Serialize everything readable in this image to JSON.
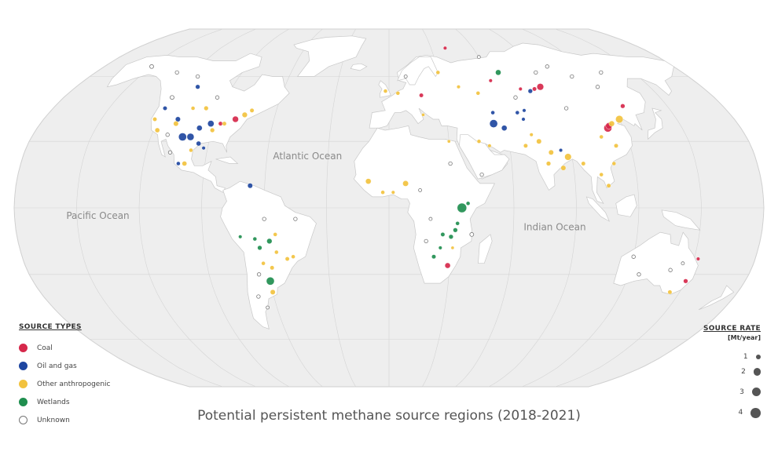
{
  "title": "Potential persistent methane source regions (2018-2021)",
  "oceans": [
    {
      "name": "Atlantic Ocean",
      "lon": -40,
      "lat": 22
    },
    {
      "name": "Pacific Ocean",
      "lon": -140,
      "lat": -5
    },
    {
      "name": "Indian Ocean",
      "lon": 80,
      "lat": -10
    }
  ],
  "legend": {
    "title": "SOURCE TYPES",
    "items": [
      {
        "key": "coal",
        "label": "Coal",
        "color": "#d6284b"
      },
      {
        "key": "oil_gas",
        "label": "Oil and gas",
        "color": "#1e46a0"
      },
      {
        "key": "other",
        "label": "Other anthropogenic",
        "color": "#f2c23e"
      },
      {
        "key": "wetlands",
        "label": "Wetlands",
        "color": "#1f8e4f"
      },
      {
        "key": "unknown",
        "label": "Unknown",
        "color": "#ffffff"
      }
    ]
  },
  "source_rate": {
    "title": "SOURCE RATE",
    "unit": "[Mt/year]",
    "values": [
      1,
      2,
      3,
      4
    ]
  },
  "sources": [
    {
      "lon": -100,
      "lat": 32,
      "type": "oil_gas",
      "rate": 2.0
    },
    {
      "lon": -104,
      "lat": 32,
      "type": "oil_gas",
      "rate": 2.5
    },
    {
      "lon": -97,
      "lat": 36,
      "type": "oil_gas",
      "rate": 1.2
    },
    {
      "lon": -92,
      "lat": 38,
      "type": "oil_gas",
      "rate": 1.6
    },
    {
      "lon": -110,
      "lat": 40,
      "type": "oil_gas",
      "rate": 1.0
    },
    {
      "lon": -110,
      "lat": 55,
      "type": "oil_gas",
      "rate": 0.8
    },
    {
      "lon": -120,
      "lat": 45,
      "type": "oil_gas",
      "rate": 0.7
    },
    {
      "lon": -95,
      "lat": 29,
      "type": "oil_gas",
      "rate": 0.9
    },
    {
      "lon": -103,
      "lat": 20,
      "type": "oil_gas",
      "rate": 0.6
    },
    {
      "lon": -92,
      "lat": 27,
      "type": "oil_gas",
      "rate": 0.5
    },
    {
      "lon": -67,
      "lat": 10,
      "type": "oil_gas",
      "rate": 1.0
    },
    {
      "lon": 54,
      "lat": 38,
      "type": "oil_gas",
      "rate": 2.5
    },
    {
      "lon": 59,
      "lat": 36,
      "type": "oil_gas",
      "rate": 1.2
    },
    {
      "lon": 68,
      "lat": 43,
      "type": "oil_gas",
      "rate": 0.6
    },
    {
      "lon": 72,
      "lat": 44,
      "type": "oil_gas",
      "rate": 0.5
    },
    {
      "lon": 55,
      "lat": 43,
      "type": "oil_gas",
      "rate": 0.6
    },
    {
      "lon": 80,
      "lat": 53,
      "type": "oil_gas",
      "rate": 0.8
    },
    {
      "lon": 85,
      "lat": 26,
      "type": "oil_gas",
      "rate": 0.5
    },
    {
      "lon": 70,
      "lat": 40,
      "type": "oil_gas",
      "rate": 0.5
    },
    {
      "lon": -80,
      "lat": 40,
      "type": "coal",
      "rate": 1.5
    },
    {
      "lon": -87,
      "lat": 38,
      "type": "coal",
      "rate": 0.7
    },
    {
      "lon": 87,
      "lat": 55,
      "type": "coal",
      "rate": 1.8
    },
    {
      "lon": 83,
      "lat": 54,
      "type": "coal",
      "rate": 0.7
    },
    {
      "lon": 112,
      "lat": 36,
      "type": "coal",
      "rate": 2.5
    },
    {
      "lon": 113,
      "lat": 37,
      "type": "coal",
      "rate": 1.6
    },
    {
      "lon": 126,
      "lat": 46,
      "type": "coal",
      "rate": 0.8
    },
    {
      "lon": 18,
      "lat": 51,
      "type": "coal",
      "rate": 0.7
    },
    {
      "lon": 29,
      "lat": -26,
      "type": "coal",
      "rate": 1.2
    },
    {
      "lon": 152,
      "lat": -23,
      "type": "coal",
      "rate": 0.5
    },
    {
      "lon": 150,
      "lat": -33,
      "type": "coal",
      "rate": 0.8
    },
    {
      "lon": 60,
      "lat": 58,
      "type": "coal",
      "rate": 0.5
    },
    {
      "lon": 75,
      "lat": 54,
      "type": "coal",
      "rate": 0.5
    },
    {
      "lon": 40,
      "lat": 75,
      "type": "coal",
      "rate": 0.5
    },
    {
      "lon": 120,
      "lat": 40,
      "type": "other",
      "rate": 2.2
    },
    {
      "lon": 115,
      "lat": 38,
      "type": "other",
      "rate": 1.2
    },
    {
      "lon": 88,
      "lat": 23,
      "type": "other",
      "rate": 1.8
    },
    {
      "lon": 80,
      "lat": 25,
      "type": "other",
      "rate": 1.0
    },
    {
      "lon": 75,
      "lat": 30,
      "type": "other",
      "rate": 1.0
    },
    {
      "lon": 85,
      "lat": 18,
      "type": "other",
      "rate": 1.0
    },
    {
      "lon": 78,
      "lat": 20,
      "type": "other",
      "rate": 0.8
    },
    {
      "lon": 95,
      "lat": 20,
      "type": "other",
      "rate": 0.7
    },
    {
      "lon": 103,
      "lat": 15,
      "type": "other",
      "rate": 0.6
    },
    {
      "lon": 106,
      "lat": 10,
      "type": "other",
      "rate": 0.7
    },
    {
      "lon": 113,
      "lat": 28,
      "type": "other",
      "rate": 0.7
    },
    {
      "lon": 110,
      "lat": 20,
      "type": "other",
      "rate": 0.6
    },
    {
      "lon": 107,
      "lat": 32,
      "type": "other",
      "rate": 0.6
    },
    {
      "lon": 8,
      "lat": 11,
      "type": "other",
      "rate": 1.3
    },
    {
      "lon": -10,
      "lat": 12,
      "type": "other",
      "rate": 1.2
    },
    {
      "lon": -3,
      "lat": 7,
      "type": "other",
      "rate": 0.6
    },
    {
      "lon": 2,
      "lat": 7,
      "type": "other",
      "rate": 0.5
    },
    {
      "lon": -110,
      "lat": 38,
      "type": "other",
      "rate": 1.0
    },
    {
      "lon": -118,
      "lat": 35,
      "type": "other",
      "rate": 0.9
    },
    {
      "lon": -90,
      "lat": 35,
      "type": "other",
      "rate": 0.8
    },
    {
      "lon": -85,
      "lat": 38,
      "type": "other",
      "rate": 0.7
    },
    {
      "lon": -98,
      "lat": 45,
      "type": "other",
      "rate": 0.8
    },
    {
      "lon": -105,
      "lat": 45,
      "type": "other",
      "rate": 0.6
    },
    {
      "lon": -122,
      "lat": 40,
      "type": "other",
      "rate": 0.7
    },
    {
      "lon": -100,
      "lat": 20,
      "type": "other",
      "rate": 0.9
    },
    {
      "lon": -76,
      "lat": 42,
      "type": "other",
      "rate": 1.1
    },
    {
      "lon": -73,
      "lat": 44,
      "type": "other",
      "rate": 0.7
    },
    {
      "lon": -98,
      "lat": 26,
      "type": "other",
      "rate": 0.6
    },
    {
      "lon": 5,
      "lat": 52,
      "type": "other",
      "rate": 0.6
    },
    {
      "lon": -2,
      "lat": 53,
      "type": "other",
      "rate": 0.6
    },
    {
      "lon": 30,
      "lat": 62,
      "type": "other",
      "rate": 0.6
    },
    {
      "lon": 50,
      "lat": 52,
      "type": "other",
      "rate": 0.6
    },
    {
      "lon": 40,
      "lat": 55,
      "type": "other",
      "rate": 0.5
    },
    {
      "lon": 45,
      "lat": 30,
      "type": "other",
      "rate": 0.6
    },
    {
      "lon": 50,
      "lat": 28,
      "type": "other",
      "rate": 0.5
    },
    {
      "lon": 68,
      "lat": 28,
      "type": "other",
      "rate": 0.7
    },
    {
      "lon": 72,
      "lat": 33,
      "type": "other",
      "rate": 0.5
    },
    {
      "lon": -55,
      "lat": -12,
      "type": "other",
      "rate": 0.6
    },
    {
      "lon": -55,
      "lat": -20,
      "type": "other",
      "rate": 0.6
    },
    {
      "lon": -50,
      "lat": -23,
      "type": "other",
      "rate": 0.7
    },
    {
      "lon": -58,
      "lat": -27,
      "type": "other",
      "rate": 0.7
    },
    {
      "lon": -62,
      "lat": -25,
      "type": "other",
      "rate": 0.6
    },
    {
      "lon": -60,
      "lat": -38,
      "type": "other",
      "rate": 1.0
    },
    {
      "lon": -47,
      "lat": -22,
      "type": "other",
      "rate": 0.6
    },
    {
      "lon": 31,
      "lat": -18,
      "type": "other",
      "rate": 0.4
    },
    {
      "lon": 145,
      "lat": -38,
      "type": "other",
      "rate": 0.7
    },
    {
      "lon": 18,
      "lat": 42,
      "type": "other",
      "rate": 0.4
    },
    {
      "lon": 30,
      "lat": 30,
      "type": "other",
      "rate": 0.4
    },
    {
      "lon": 35,
      "lat": 0,
      "type": "wetlands",
      "rate": 3.5
    },
    {
      "lon": 38,
      "lat": 2,
      "type": "wetlands",
      "rate": 0.6
    },
    {
      "lon": -60,
      "lat": -33,
      "type": "wetlands",
      "rate": 2.5
    },
    {
      "lon": -58,
      "lat": -15,
      "type": "wetlands",
      "rate": 1.1
    },
    {
      "lon": -63,
      "lat": -18,
      "type": "wetlands",
      "rate": 0.8
    },
    {
      "lon": -65,
      "lat": -14,
      "type": "wetlands",
      "rate": 0.6
    },
    {
      "lon": -72,
      "lat": -13,
      "type": "wetlands",
      "rate": 0.5
    },
    {
      "lon": 67,
      "lat": 62,
      "type": "wetlands",
      "rate": 1.2
    },
    {
      "lon": 32,
      "lat": -10,
      "type": "wetlands",
      "rate": 0.8
    },
    {
      "lon": 30,
      "lat": -13,
      "type": "wetlands",
      "rate": 0.8
    },
    {
      "lon": 26,
      "lat": -12,
      "type": "wetlands",
      "rate": 0.7
    },
    {
      "lon": 33,
      "lat": -7,
      "type": "wetlands",
      "rate": 0.6
    },
    {
      "lon": 22,
      "lat": -22,
      "type": "wetlands",
      "rate": 0.7
    },
    {
      "lon": 25,
      "lat": -18,
      "type": "wetlands",
      "rate": 0.5
    },
    {
      "lon": -150,
      "lat": 65,
      "type": "unknown",
      "rate": 0.6
    },
    {
      "lon": -130,
      "lat": 62,
      "type": "unknown",
      "rate": 0.5
    },
    {
      "lon": -115,
      "lat": 60,
      "type": "unknown",
      "rate": 0.5
    },
    {
      "lon": -95,
      "lat": 50,
      "type": "unknown",
      "rate": 0.5
    },
    {
      "lon": -120,
      "lat": 50,
      "type": "unknown",
      "rate": 0.6
    },
    {
      "lon": -112,
      "lat": 33,
      "type": "unknown",
      "rate": 0.5
    },
    {
      "lon": -108,
      "lat": 25,
      "type": "unknown",
      "rate": 0.5
    },
    {
      "lon": 100,
      "lat": 65,
      "type": "unknown",
      "rate": 0.5
    },
    {
      "lon": 110,
      "lat": 60,
      "type": "unknown",
      "rate": 0.5
    },
    {
      "lon": 120,
      "lat": 55,
      "type": "unknown",
      "rate": 0.5
    },
    {
      "lon": 90,
      "lat": 62,
      "type": "unknown",
      "rate": 0.5
    },
    {
      "lon": 130,
      "lat": 62,
      "type": "unknown",
      "rate": 0.5
    },
    {
      "lon": 70,
      "lat": 50,
      "type": "unknown",
      "rate": 0.5
    },
    {
      "lon": 95,
      "lat": 45,
      "type": "unknown",
      "rate": 0.5
    },
    {
      "lon": 45,
      "lat": 15,
      "type": "unknown",
      "rate": 0.5
    },
    {
      "lon": 30,
      "lat": 20,
      "type": "unknown",
      "rate": 0.5
    },
    {
      "lon": 15,
      "lat": 8,
      "type": "unknown",
      "rate": 0.4
    },
    {
      "lon": 40,
      "lat": -12,
      "type": "unknown",
      "rate": 0.6
    },
    {
      "lon": 20,
      "lat": -5,
      "type": "unknown",
      "rate": 0.4
    },
    {
      "lon": 18,
      "lat": -15,
      "type": "unknown",
      "rate": 0.5
    },
    {
      "lon": -45,
      "lat": -5,
      "type": "unknown",
      "rate": 0.5
    },
    {
      "lon": -60,
      "lat": -5,
      "type": "unknown",
      "rate": 0.5
    },
    {
      "lon": -65,
      "lat": -30,
      "type": "unknown",
      "rate": 0.5
    },
    {
      "lon": -68,
      "lat": -40,
      "type": "unknown",
      "rate": 0.5
    },
    {
      "lon": -65,
      "lat": -45,
      "type": "unknown",
      "rate": 0.4
    },
    {
      "lon": 120,
      "lat": -22,
      "type": "unknown",
      "rate": 0.5
    },
    {
      "lon": 125,
      "lat": -30,
      "type": "unknown",
      "rate": 0.5
    },
    {
      "lon": 140,
      "lat": -28,
      "type": "unknown",
      "rate": 0.5
    },
    {
      "lon": 145,
      "lat": -25,
      "type": "unknown",
      "rate": 0.4
    },
    {
      "lon": 10,
      "lat": 60,
      "type": "unknown",
      "rate": 0.4
    },
    {
      "lon": 60,
      "lat": 70,
      "type": "unknown",
      "rate": 0.4
    }
  ]
}
